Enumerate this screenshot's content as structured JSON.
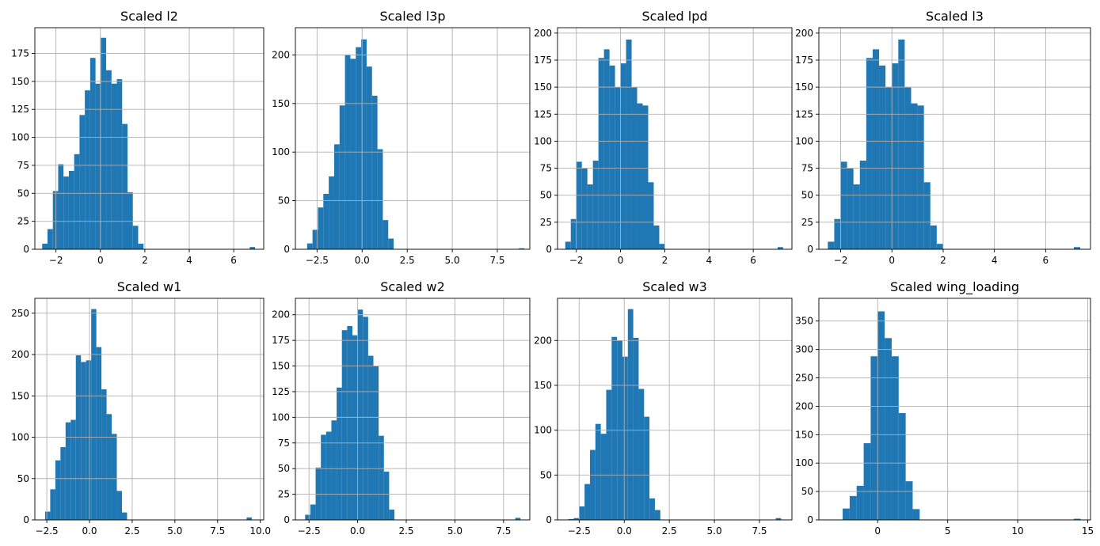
{
  "bar_color": "#1f77b4",
  "grid_color": "#b0b0b0",
  "chart_data": [
    {
      "type": "bar",
      "title": "Scaled l2",
      "xlim": [
        -2.95,
        7.35
      ],
      "ylim": [
        0,
        198
      ],
      "xticks": [
        -2,
        0,
        2,
        4,
        6
      ],
      "xtick_labels": [
        "−2",
        "0",
        "2",
        "4",
        "6"
      ],
      "yticks": [
        0,
        25,
        50,
        75,
        100,
        125,
        150,
        175
      ],
      "ytick_labels": [
        "0",
        "25",
        "50",
        "75",
        "100",
        "125",
        "150",
        "175"
      ],
      "grid": true,
      "bins": [
        {
          "x0": -2.62,
          "x1": -2.38,
          "count": 5
        },
        {
          "x0": -2.38,
          "x1": -2.14,
          "count": 18
        },
        {
          "x0": -2.14,
          "x1": -1.9,
          "count": 52
        },
        {
          "x0": -1.9,
          "x1": -1.66,
          "count": 76
        },
        {
          "x0": -1.66,
          "x1": -1.42,
          "count": 65
        },
        {
          "x0": -1.42,
          "x1": -1.18,
          "count": 70
        },
        {
          "x0": -1.18,
          "x1": -0.94,
          "count": 85
        },
        {
          "x0": -0.94,
          "x1": -0.7,
          "count": 120
        },
        {
          "x0": -0.7,
          "x1": -0.46,
          "count": 142
        },
        {
          "x0": -0.46,
          "x1": -0.22,
          "count": 171
        },
        {
          "x0": -0.22,
          "x1": 0.02,
          "count": 148
        },
        {
          "x0": 0.02,
          "x1": 0.26,
          "count": 189
        },
        {
          "x0": 0.26,
          "x1": 0.5,
          "count": 160
        },
        {
          "x0": 0.5,
          "x1": 0.74,
          "count": 148
        },
        {
          "x0": 0.74,
          "x1": 0.98,
          "count": 152
        },
        {
          "x0": 0.98,
          "x1": 1.22,
          "count": 112
        },
        {
          "x0": 1.22,
          "x1": 1.46,
          "count": 51
        },
        {
          "x0": 1.46,
          "x1": 1.7,
          "count": 21
        },
        {
          "x0": 1.7,
          "x1": 1.94,
          "count": 5
        },
        {
          "x0": 6.72,
          "x1": 6.96,
          "count": 2
        }
      ]
    },
    {
      "type": "bar",
      "title": "Scaled l3p",
      "xlim": [
        -3.7,
        9.3
      ],
      "ylim": [
        0,
        228
      ],
      "xticks": [
        -2.5,
        0,
        2.5,
        5,
        7.5
      ],
      "xtick_labels": [
        "−2.5",
        "0.0",
        "2.5",
        "5.0",
        "7.5"
      ],
      "yticks": [
        0,
        50,
        100,
        150,
        200
      ],
      "ytick_labels": [
        "0",
        "50",
        "100",
        "150",
        "200"
      ],
      "grid": true,
      "bins": [
        {
          "x0": -3.05,
          "x1": -2.75,
          "count": 6
        },
        {
          "x0": -2.75,
          "x1": -2.45,
          "count": 20
        },
        {
          "x0": -2.45,
          "x1": -2.15,
          "count": 43
        },
        {
          "x0": -2.15,
          "x1": -1.85,
          "count": 57
        },
        {
          "x0": -1.85,
          "x1": -1.55,
          "count": 75
        },
        {
          "x0": -1.55,
          "x1": -1.25,
          "count": 108
        },
        {
          "x0": -1.25,
          "x1": -0.95,
          "count": 148
        },
        {
          "x0": -0.95,
          "x1": -0.65,
          "count": 200
        },
        {
          "x0": -0.65,
          "x1": -0.35,
          "count": 196
        },
        {
          "x0": -0.35,
          "x1": -0.05,
          "count": 208
        },
        {
          "x0": -0.05,
          "x1": 0.25,
          "count": 216
        },
        {
          "x0": 0.25,
          "x1": 0.55,
          "count": 188
        },
        {
          "x0": 0.55,
          "x1": 0.85,
          "count": 158
        },
        {
          "x0": 0.85,
          "x1": 1.15,
          "count": 103
        },
        {
          "x0": 1.15,
          "x1": 1.45,
          "count": 30
        },
        {
          "x0": 1.45,
          "x1": 1.75,
          "count": 11
        },
        {
          "x0": 8.7,
          "x1": 9.0,
          "count": 1
        }
      ]
    },
    {
      "type": "bar",
      "title": "Scaled lpd",
      "xlim": [
        -2.85,
        7.75
      ],
      "ylim": [
        0,
        205
      ],
      "xticks": [
        -2,
        0,
        2,
        4,
        6
      ],
      "xtick_labels": [
        "−2",
        "0",
        "2",
        "4",
        "6"
      ],
      "yticks": [
        0,
        25,
        50,
        75,
        100,
        125,
        150,
        175,
        200
      ],
      "ytick_labels": [
        "0",
        "25",
        "50",
        "75",
        "100",
        "125",
        "150",
        "175",
        "200"
      ],
      "grid": true,
      "bins": [
        {
          "x0": -2.5,
          "x1": -2.25,
          "count": 7
        },
        {
          "x0": -2.25,
          "x1": -2.0,
          "count": 28
        },
        {
          "x0": -2.0,
          "x1": -1.75,
          "count": 81
        },
        {
          "x0": -1.75,
          "x1": -1.5,
          "count": 75
        },
        {
          "x0": -1.5,
          "x1": -1.25,
          "count": 60
        },
        {
          "x0": -1.25,
          "x1": -1.0,
          "count": 82
        },
        {
          "x0": -1.0,
          "x1": -0.75,
          "count": 177
        },
        {
          "x0": -0.75,
          "x1": -0.5,
          "count": 185
        },
        {
          "x0": -0.5,
          "x1": -0.25,
          "count": 170
        },
        {
          "x0": -0.25,
          "x1": 0.0,
          "count": 150
        },
        {
          "x0": 0.0,
          "x1": 0.25,
          "count": 172
        },
        {
          "x0": 0.25,
          "x1": 0.5,
          "count": 194
        },
        {
          "x0": 0.5,
          "x1": 0.75,
          "count": 150
        },
        {
          "x0": 0.75,
          "x1": 1.0,
          "count": 135
        },
        {
          "x0": 1.0,
          "x1": 1.25,
          "count": 133
        },
        {
          "x0": 1.25,
          "x1": 1.5,
          "count": 62
        },
        {
          "x0": 1.5,
          "x1": 1.75,
          "count": 22
        },
        {
          "x0": 1.75,
          "x1": 2.0,
          "count": 5
        },
        {
          "x0": 7.1,
          "x1": 7.35,
          "count": 2
        }
      ]
    },
    {
      "type": "bar",
      "title": "Scaled l3",
      "xlim": [
        -2.85,
        7.75
      ],
      "ylim": [
        0,
        205
      ],
      "xticks": [
        -2,
        0,
        2,
        4,
        6
      ],
      "xtick_labels": [
        "−2",
        "0",
        "2",
        "4",
        "6"
      ],
      "yticks": [
        0,
        25,
        50,
        75,
        100,
        125,
        150,
        175,
        200
      ],
      "ytick_labels": [
        "0",
        "25",
        "50",
        "75",
        "100",
        "125",
        "150",
        "175",
        "200"
      ],
      "grid": true,
      "bins": [
        {
          "x0": -2.5,
          "x1": -2.25,
          "count": 7
        },
        {
          "x0": -2.25,
          "x1": -2.0,
          "count": 28
        },
        {
          "x0": -2.0,
          "x1": -1.75,
          "count": 81
        },
        {
          "x0": -1.75,
          "x1": -1.5,
          "count": 75
        },
        {
          "x0": -1.5,
          "x1": -1.25,
          "count": 60
        },
        {
          "x0": -1.25,
          "x1": -1.0,
          "count": 82
        },
        {
          "x0": -1.0,
          "x1": -0.75,
          "count": 177
        },
        {
          "x0": -0.75,
          "x1": -0.5,
          "count": 185
        },
        {
          "x0": -0.5,
          "x1": -0.25,
          "count": 170
        },
        {
          "x0": -0.25,
          "x1": 0.0,
          "count": 150
        },
        {
          "x0": 0.0,
          "x1": 0.25,
          "count": 172
        },
        {
          "x0": 0.25,
          "x1": 0.5,
          "count": 194
        },
        {
          "x0": 0.5,
          "x1": 0.75,
          "count": 150
        },
        {
          "x0": 0.75,
          "x1": 1.0,
          "count": 135
        },
        {
          "x0": 1.0,
          "x1": 1.25,
          "count": 133
        },
        {
          "x0": 1.25,
          "x1": 1.5,
          "count": 62
        },
        {
          "x0": 1.5,
          "x1": 1.75,
          "count": 22
        },
        {
          "x0": 1.75,
          "x1": 2.0,
          "count": 5
        },
        {
          "x0": 7.1,
          "x1": 7.35,
          "count": 2
        }
      ]
    },
    {
      "type": "bar",
      "title": "Scaled w1",
      "xlim": [
        -3.2,
        10.2
      ],
      "ylim": [
        0,
        268
      ],
      "xticks": [
        -2.5,
        0,
        2.5,
        5,
        7.5,
        10
      ],
      "xtick_labels": [
        "−2.5",
        "0.0",
        "2.5",
        "5.0",
        "7.5",
        "10.0"
      ],
      "yticks": [
        0,
        50,
        100,
        150,
        200,
        250
      ],
      "ytick_labels": [
        "0",
        "50",
        "100",
        "150",
        "200",
        "250"
      ],
      "grid": true,
      "bins": [
        {
          "x0": -2.6,
          "x1": -2.3,
          "count": 10
        },
        {
          "x0": -2.3,
          "x1": -2.0,
          "count": 37
        },
        {
          "x0": -2.0,
          "x1": -1.7,
          "count": 72
        },
        {
          "x0": -1.7,
          "x1": -1.4,
          "count": 88
        },
        {
          "x0": -1.4,
          "x1": -1.1,
          "count": 118
        },
        {
          "x0": -1.1,
          "x1": -0.8,
          "count": 121
        },
        {
          "x0": -0.8,
          "x1": -0.5,
          "count": 199
        },
        {
          "x0": -0.5,
          "x1": -0.2,
          "count": 191
        },
        {
          "x0": -0.2,
          "x1": 0.1,
          "count": 193
        },
        {
          "x0": 0.1,
          "x1": 0.4,
          "count": 255
        },
        {
          "x0": 0.4,
          "x1": 0.7,
          "count": 209
        },
        {
          "x0": 0.7,
          "x1": 1.0,
          "count": 158
        },
        {
          "x0": 1.0,
          "x1": 1.3,
          "count": 128
        },
        {
          "x0": 1.3,
          "x1": 1.6,
          "count": 104
        },
        {
          "x0": 1.6,
          "x1": 1.9,
          "count": 35
        },
        {
          "x0": 1.9,
          "x1": 2.2,
          "count": 9
        },
        {
          "x0": 9.2,
          "x1": 9.5,
          "count": 3
        }
      ]
    },
    {
      "type": "bar",
      "title": "Scaled w2",
      "xlim": [
        -3.2,
        8.85
      ],
      "ylim": [
        0,
        216
      ],
      "xticks": [
        -2.5,
        0,
        2.5,
        5,
        7.5
      ],
      "xtick_labels": [
        "−2.5",
        "0.0",
        "2.5",
        "5.0",
        "7.5"
      ],
      "yticks": [
        0,
        25,
        50,
        75,
        100,
        125,
        150,
        175,
        200
      ],
      "ytick_labels": [
        "0",
        "25",
        "50",
        "75",
        "100",
        "125",
        "150",
        "175",
        "200"
      ],
      "grid": true,
      "bins": [
        {
          "x0": -2.7,
          "x1": -2.43,
          "count": 5
        },
        {
          "x0": -2.43,
          "x1": -2.16,
          "count": 15
        },
        {
          "x0": -2.16,
          "x1": -1.89,
          "count": 51
        },
        {
          "x0": -1.89,
          "x1": -1.62,
          "count": 83
        },
        {
          "x0": -1.62,
          "x1": -1.35,
          "count": 86
        },
        {
          "x0": -1.35,
          "x1": -1.08,
          "count": 97
        },
        {
          "x0": -1.08,
          "x1": -0.81,
          "count": 129
        },
        {
          "x0": -0.81,
          "x1": -0.54,
          "count": 185
        },
        {
          "x0": -0.54,
          "x1": -0.27,
          "count": 189
        },
        {
          "x0": -0.27,
          "x1": 0.0,
          "count": 180
        },
        {
          "x0": 0.0,
          "x1": 0.27,
          "count": 205
        },
        {
          "x0": 0.27,
          "x1": 0.54,
          "count": 198
        },
        {
          "x0": 0.54,
          "x1": 0.81,
          "count": 160
        },
        {
          "x0": 0.81,
          "x1": 1.08,
          "count": 150
        },
        {
          "x0": 1.08,
          "x1": 1.35,
          "count": 82
        },
        {
          "x0": 1.35,
          "x1": 1.62,
          "count": 47
        },
        {
          "x0": 1.62,
          "x1": 1.89,
          "count": 10
        },
        {
          "x0": 8.1,
          "x1": 8.37,
          "count": 2
        }
      ]
    },
    {
      "type": "bar",
      "title": "Scaled w3",
      "xlim": [
        -3.7,
        9.3
      ],
      "ylim": [
        0,
        247
      ],
      "xticks": [
        -2.5,
        0,
        2.5,
        5,
        7.5
      ],
      "xtick_labels": [
        "−2.5",
        "0.0",
        "2.5",
        "5.0",
        "7.5"
      ],
      "yticks": [
        0,
        50,
        100,
        150,
        200
      ],
      "ytick_labels": [
        "0",
        "50",
        "100",
        "150",
        "200"
      ],
      "grid": true,
      "bins": [
        {
          "x0": -3.1,
          "x1": -2.8,
          "count": 1
        },
        {
          "x0": -2.8,
          "x1": -2.5,
          "count": 2
        },
        {
          "x0": -2.5,
          "x1": -2.2,
          "count": 15
        },
        {
          "x0": -2.2,
          "x1": -1.9,
          "count": 40
        },
        {
          "x0": -1.9,
          "x1": -1.6,
          "count": 78
        },
        {
          "x0": -1.6,
          "x1": -1.3,
          "count": 107
        },
        {
          "x0": -1.3,
          "x1": -1.0,
          "count": 96
        },
        {
          "x0": -1.0,
          "x1": -0.7,
          "count": 145
        },
        {
          "x0": -0.7,
          "x1": -0.4,
          "count": 204
        },
        {
          "x0": -0.4,
          "x1": -0.1,
          "count": 200
        },
        {
          "x0": -0.1,
          "x1": 0.2,
          "count": 182
        },
        {
          "x0": 0.2,
          "x1": 0.5,
          "count": 235
        },
        {
          "x0": 0.5,
          "x1": 0.8,
          "count": 203
        },
        {
          "x0": 0.8,
          "x1": 1.1,
          "count": 146
        },
        {
          "x0": 1.1,
          "x1": 1.4,
          "count": 115
        },
        {
          "x0": 1.4,
          "x1": 1.7,
          "count": 24
        },
        {
          "x0": 1.7,
          "x1": 2.0,
          "count": 11
        },
        {
          "x0": 8.4,
          "x1": 8.7,
          "count": 2
        }
      ]
    },
    {
      "type": "bar",
      "title": "Scaled wing_loading",
      "xlim": [
        -4.2,
        15.2
      ],
      "ylim": [
        0,
        390
      ],
      "xticks": [
        0,
        5,
        10,
        15
      ],
      "xtick_labels": [
        "0",
        "5",
        "10",
        "15"
      ],
      "yticks": [
        0,
        50,
        100,
        150,
        200,
        250,
        300,
        350
      ],
      "ytick_labels": [
        "0",
        "50",
        "100",
        "150",
        "200",
        "250",
        "300",
        "350"
      ],
      "grid": true,
      "bins": [
        {
          "x0": -2.5,
          "x1": -2.0,
          "count": 20
        },
        {
          "x0": -2.0,
          "x1": -1.5,
          "count": 42
        },
        {
          "x0": -1.5,
          "x1": -1.0,
          "count": 60
        },
        {
          "x0": -1.0,
          "x1": -0.5,
          "count": 135
        },
        {
          "x0": -0.5,
          "x1": 0.0,
          "count": 288
        },
        {
          "x0": 0.0,
          "x1": 0.5,
          "count": 367
        },
        {
          "x0": 0.5,
          "x1": 1.0,
          "count": 320
        },
        {
          "x0": 1.0,
          "x1": 1.5,
          "count": 288
        },
        {
          "x0": 1.5,
          "x1": 2.0,
          "count": 188
        },
        {
          "x0": 2.0,
          "x1": 2.5,
          "count": 68
        },
        {
          "x0": 2.5,
          "x1": 3.0,
          "count": 19
        },
        {
          "x0": 14.0,
          "x1": 14.5,
          "count": 2
        }
      ]
    }
  ]
}
